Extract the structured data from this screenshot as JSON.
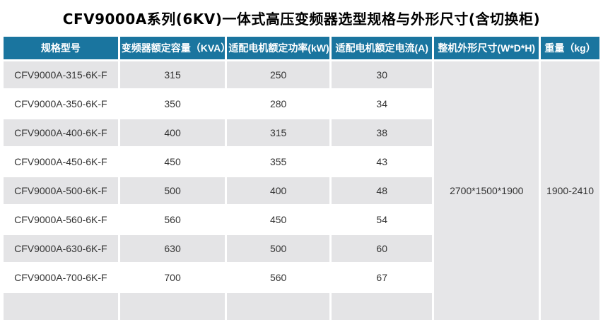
{
  "title": "CFV9000A系列(6KV)一体式高压变频器选型规格与外形尺寸(含切换柜)",
  "table": {
    "headers": {
      "model": "规格型号",
      "capacity": "变频器额定容量（KVA）",
      "power": "适配电机额定功率(kW)",
      "current": "适配电机额定电流(A)",
      "dimensions": "整机外形尺寸(W*D*H)",
      "weight": "重量（kg）"
    },
    "rows": [
      {
        "model": "CFV9000A-315-6K-F",
        "capacity": "315",
        "power": "250",
        "current": "30"
      },
      {
        "model": "CFV9000A-350-6K-F",
        "capacity": "350",
        "power": "280",
        "current": "34"
      },
      {
        "model": "CFV9000A-400-6K-F",
        "capacity": "400",
        "power": "315",
        "current": "38"
      },
      {
        "model": "CFV9000A-450-6K-F",
        "capacity": "450",
        "power": "355",
        "current": "43"
      },
      {
        "model": "CFV9000A-500-6K-F",
        "capacity": "500",
        "power": "400",
        "current": "48"
      },
      {
        "model": "CFV9000A-560-6K-F",
        "capacity": "560",
        "power": "450",
        "current": "54"
      },
      {
        "model": "CFV9000A-630-6K-F",
        "capacity": "630",
        "power": "500",
        "current": "60"
      },
      {
        "model": "CFV9000A-700-6K-F",
        "capacity": "700",
        "power": "560",
        "current": "67"
      }
    ],
    "merged": {
      "dimensions_value": "2700*1500*1900",
      "weight_value": "1900-2410"
    }
  },
  "colors": {
    "header_bg": "#1a759f",
    "header_text": "#ffffff",
    "row_alt_bg": "#e4e4e6",
    "merged_bg": "#e6e6e8",
    "body_text": "#333333"
  }
}
